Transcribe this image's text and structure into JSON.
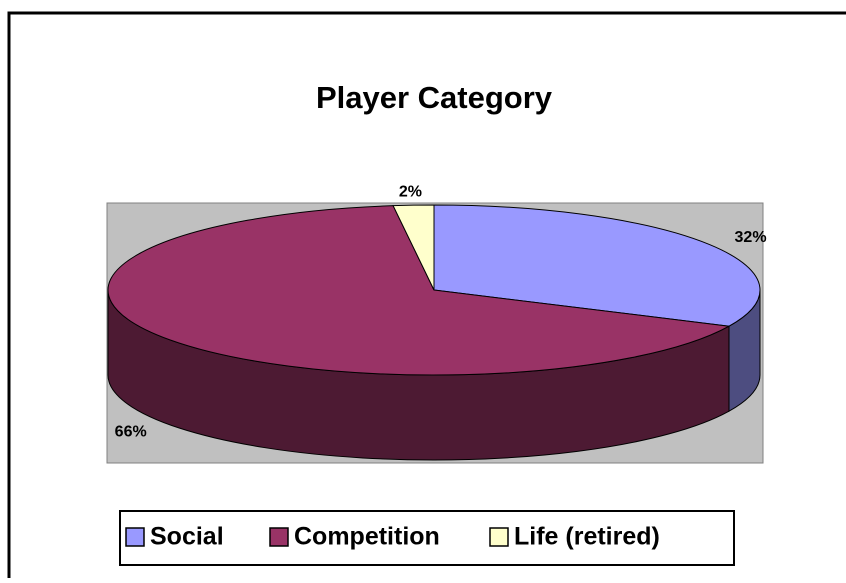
{
  "chart_data": {
    "type": "pie",
    "title": "Player Category",
    "categories": [
      "Social",
      "Competition",
      "Life (retired)"
    ],
    "values": [
      32,
      66,
      2
    ],
    "value_labels": [
      "32%",
      "66%",
      "2%"
    ],
    "colors": [
      "#9999ff",
      "#993366",
      "#ffffcc"
    ],
    "legend": "bottom"
  }
}
